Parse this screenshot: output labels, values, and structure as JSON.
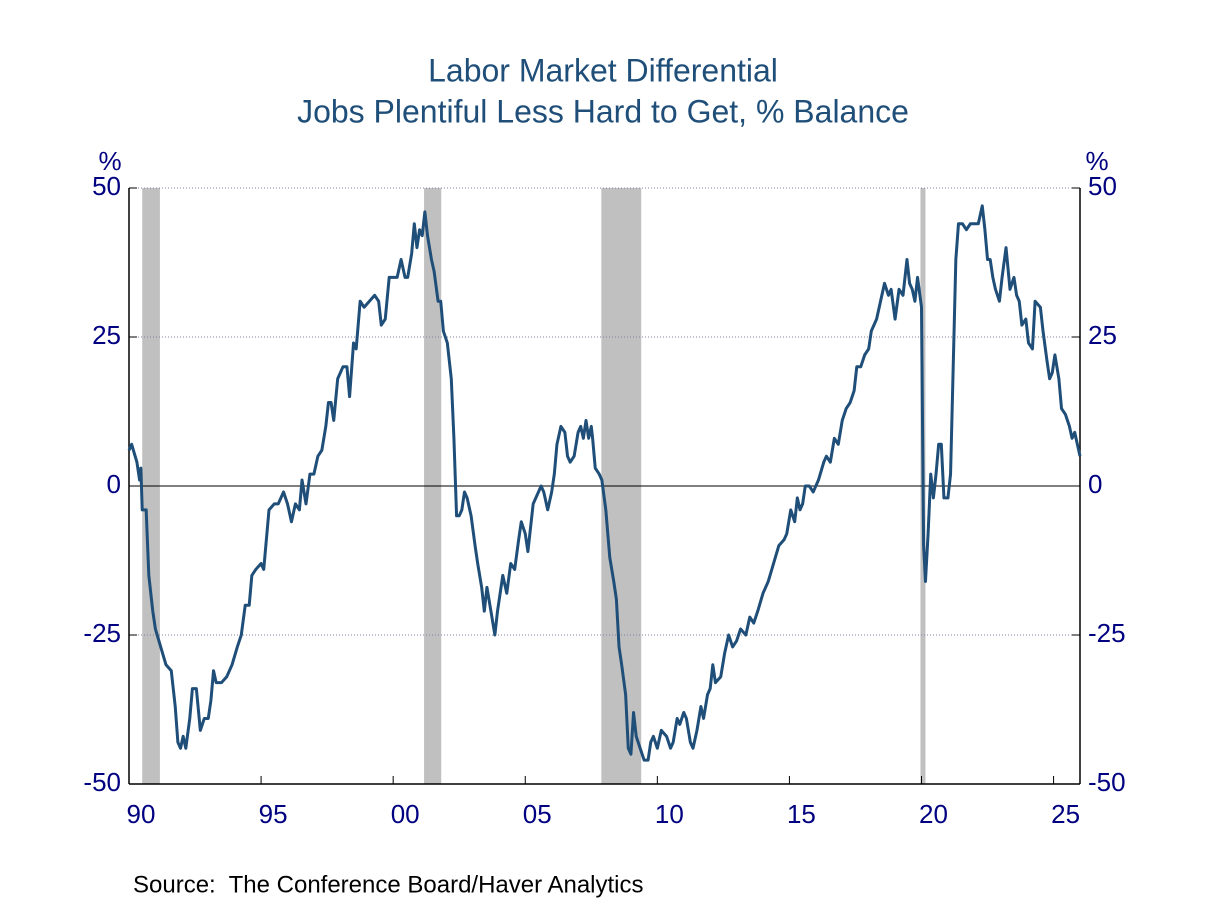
{
  "chart_data": {
    "type": "line",
    "title": "Labor Market Differential",
    "subtitle": "Jobs Plentiful Less Hard to Get, % Balance",
    "y_label": "%",
    "y2_label": "%",
    "source": "Source:  The Conference Board/Haver Analytics",
    "xlim": [
      1990,
      2026
    ],
    "xticks": [
      {
        "value": 1990,
        "label": "90"
      },
      {
        "value": 1995,
        "label": "95"
      },
      {
        "value": 2000,
        "label": "00"
      },
      {
        "value": 2005,
        "label": "05"
      },
      {
        "value": 2010,
        "label": "10"
      },
      {
        "value": 2015,
        "label": "15"
      },
      {
        "value": 2020,
        "label": "20"
      },
      {
        "value": 2025,
        "label": "25"
      }
    ],
    "ylim": [
      -50,
      50
    ],
    "yticks": [
      -50,
      -25,
      0,
      25,
      50
    ],
    "y2lim": [
      -50,
      50
    ],
    "y2ticks": [
      -50,
      -25,
      0,
      25,
      50
    ],
    "grid": true,
    "recession_color": "#c0c0c0",
    "recessions": [
      {
        "start": 1990.5,
        "end": 1991.17
      },
      {
        "start": 2001.17,
        "end": 2001.82
      },
      {
        "start": 2007.88,
        "end": 2009.39
      },
      {
        "start": 2019.96,
        "end": 2020.15
      }
    ],
    "x": [
      1990.0,
      1990.1,
      1990.3,
      1990.4,
      1990.45,
      1990.5,
      1990.65,
      1990.75,
      1990.9,
      1991.0,
      1991.2,
      1991.4,
      1991.6,
      1991.75,
      1991.85,
      1991.95,
      1992.05,
      1992.15,
      1992.3,
      1992.4,
      1992.55,
      1992.7,
      1992.85,
      1993.0,
      1993.1,
      1993.2,
      1993.3,
      1993.5,
      1993.7,
      1993.9,
      1994.1,
      1994.25,
      1994.4,
      1994.55,
      1994.65,
      1994.8,
      1995.0,
      1995.1,
      1995.3,
      1995.5,
      1995.65,
      1995.85,
      1996.0,
      1996.15,
      1996.3,
      1996.45,
      1996.55,
      1996.7,
      1996.85,
      1997.0,
      1997.15,
      1997.3,
      1997.45,
      1997.55,
      1997.65,
      1997.75,
      1997.9,
      1998.1,
      1998.25,
      1998.35,
      1998.5,
      1998.6,
      1998.75,
      1998.9,
      1999.1,
      1999.3,
      1999.45,
      1999.55,
      1999.7,
      1999.85,
      2000.0,
      2000.15,
      2000.3,
      2000.45,
      2000.55,
      2000.7,
      2000.8,
      2000.9,
      2001.0,
      2001.1,
      2001.2,
      2001.3,
      2001.45,
      2001.55,
      2001.7,
      2001.8,
      2001.9,
      2002.05,
      2002.2,
      2002.3,
      2002.4,
      2002.5,
      2002.6,
      2002.7,
      2002.8,
      2002.95,
      2003.1,
      2003.2,
      2003.35,
      2003.45,
      2003.55,
      2003.7,
      2003.85,
      2003.95,
      2004.05,
      2004.15,
      2004.3,
      2004.45,
      2004.6,
      2004.75,
      2004.85,
      2005.0,
      2005.1,
      2005.3,
      2005.5,
      2005.6,
      2005.7,
      2005.85,
      2006.0,
      2006.1,
      2006.2,
      2006.35,
      2006.5,
      2006.6,
      2006.7,
      2006.85,
      2007.0,
      2007.1,
      2007.2,
      2007.3,
      2007.4,
      2007.5,
      2007.55,
      2007.65,
      2007.8,
      2007.9,
      2008.05,
      2008.2,
      2008.35,
      2008.45,
      2008.55,
      2008.65,
      2008.8,
      2008.9,
      2009.0,
      2009.1,
      2009.2,
      2009.35,
      2009.5,
      2009.65,
      2009.75,
      2009.85,
      2010.0,
      2010.15,
      2010.35,
      2010.5,
      2010.6,
      2010.75,
      2010.85,
      2011.0,
      2011.1,
      2011.25,
      2011.35,
      2011.5,
      2011.65,
      2011.75,
      2011.9,
      2012.0,
      2012.1,
      2012.2,
      2012.4,
      2012.55,
      2012.7,
      2012.85,
      2013.0,
      2013.15,
      2013.35,
      2013.5,
      2013.65,
      2013.8,
      2014.0,
      2014.2,
      2014.4,
      2014.6,
      2014.8,
      2014.9,
      2015.05,
      2015.2,
      2015.3,
      2015.4,
      2015.5,
      2015.6,
      2015.75,
      2015.9,
      2016.1,
      2016.3,
      2016.4,
      2016.55,
      2016.7,
      2016.85,
      2017.0,
      2017.15,
      2017.3,
      2017.45,
      2017.55,
      2017.7,
      2017.85,
      2018.0,
      2018.1,
      2018.3,
      2018.45,
      2018.6,
      2018.75,
      2018.85,
      2019.0,
      2019.15,
      2019.3,
      2019.45,
      2019.55,
      2019.65,
      2019.75,
      2019.85,
      2020.0,
      2020.08,
      2020.15,
      2020.25,
      2020.35,
      2020.45,
      2020.55,
      2020.65,
      2020.75,
      2020.85,
      2021.0,
      2021.1,
      2021.2,
      2021.3,
      2021.4,
      2021.55,
      2021.7,
      2021.85,
      2022.0,
      2022.15,
      2022.3,
      2022.4,
      2022.5,
      2022.6,
      2022.7,
      2022.8,
      2022.95,
      2023.05,
      2023.2,
      2023.35,
      2023.5,
      2023.6,
      2023.7,
      2023.8,
      2023.95,
      2024.05,
      2024.2,
      2024.3,
      2024.5,
      2024.6,
      2024.75,
      2024.85,
      2024.95,
      2025.05,
      2025.2,
      2025.3,
      2025.45,
      2025.6,
      2025.7,
      2025.8,
      2025.9,
      2026.0
    ],
    "series": [
      {
        "name": "Jobs Plentiful Less Hard to Get",
        "color": "#1f4e79",
        "values": [
          6,
          7,
          4,
          1,
          3,
          -4,
          -4,
          -15,
          -21,
          -24,
          -27,
          -30,
          -31,
          -37,
          -43,
          -44,
          -42,
          -44,
          -39,
          -34,
          -34,
          -41,
          -39,
          -39,
          -36,
          -31,
          -33,
          -33,
          -32,
          -30,
          -27,
          -25,
          -20,
          -20,
          -15,
          -14,
          -13,
          -14,
          -4,
          -3,
          -3,
          -1,
          -3,
          -6,
          -3,
          -4,
          1,
          -3,
          2,
          2,
          5,
          6,
          10,
          14,
          14,
          11,
          18,
          20,
          20,
          15,
          24,
          23,
          31,
          30,
          31,
          32,
          31,
          27,
          28,
          35,
          35,
          35,
          38,
          35,
          35,
          39,
          44,
          40,
          43,
          42,
          46,
          42,
          38,
          36,
          31,
          31,
          26,
          24,
          18,
          8,
          -5,
          -5,
          -4,
          -1,
          -2,
          -5,
          -10,
          -13,
          -17,
          -21,
          -17,
          -21,
          -25,
          -21,
          -18,
          -15,
          -18,
          -13,
          -14,
          -9,
          -6,
          -8,
          -11,
          -3,
          -1,
          0,
          -1,
          -4,
          -1,
          2,
          7,
          10,
          9,
          5,
          4,
          5,
          9,
          10,
          8,
          11,
          8,
          10,
          8,
          3,
          2,
          1,
          -4,
          -12,
          -16,
          -19,
          -27,
          -30,
          -35,
          -44,
          -45,
          -38,
          -42,
          -44,
          -46,
          -46,
          -43,
          -42,
          -44,
          -41,
          -42,
          -44,
          -43,
          -39,
          -40,
          -38,
          -39,
          -43,
          -44,
          -41,
          -37,
          -39,
          -35,
          -34,
          -30,
          -33,
          -32,
          -28,
          -25,
          -27,
          -26,
          -24,
          -25,
          -22,
          -23,
          -21,
          -18,
          -16,
          -13,
          -10,
          -9,
          -8,
          -4,
          -6,
          -2,
          -4,
          -3,
          0,
          0,
          -1,
          1,
          4,
          5,
          4,
          8,
          7,
          11,
          13,
          14,
          16,
          20,
          20,
          22,
          23,
          26,
          28,
          31,
          34,
          32,
          33,
          28,
          33,
          32,
          38,
          34,
          33,
          31,
          35,
          30,
          -10,
          -16,
          -8,
          2,
          -2,
          2,
          7,
          7,
          -2,
          -2,
          2,
          20,
          38,
          44,
          44,
          43,
          44,
          44,
          44,
          47,
          43,
          38,
          38,
          35,
          33,
          31,
          35,
          40,
          33,
          35,
          32,
          31,
          27,
          28,
          24,
          23,
          31,
          30,
          26,
          21,
          18,
          19,
          22,
          18,
          13,
          12,
          10,
          8,
          9,
          7,
          5
        ]
      }
    ]
  }
}
